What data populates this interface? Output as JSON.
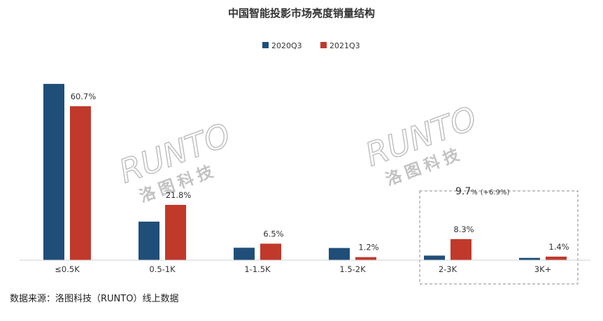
{
  "chart_data": {
    "type": "bar",
    "title": "中国智能投影市场亮度销量结构",
    "categories": [
      "≤0.5K",
      "0.5-1K",
      "1-1.5K",
      "1.5-2K",
      "2-3K",
      "3K+"
    ],
    "series": [
      {
        "name": "2020Q3",
        "color": "#1f4e79",
        "values": [
          69.5,
          15.2,
          4.9,
          4.8,
          1.8,
          0.9
        ]
      },
      {
        "name": "2021Q3",
        "color": "#c0392b",
        "values": [
          60.7,
          21.8,
          6.5,
          1.2,
          8.3,
          1.4
        ]
      }
    ],
    "data_labels": [
      "60.7%",
      "21.8%",
      "6.5%",
      "1.2%",
      "8.3%",
      "1.4%"
    ],
    "ylim": [
      0,
      75
    ],
    "grid": false,
    "legend_position": "top-center",
    "annotation": {
      "value": "9.7",
      "unit": "%",
      "change": "(+6.9%)"
    }
  },
  "watermarks": [
    {
      "brand": "RUNTO",
      "cn": "洛图科技"
    },
    {
      "brand": "RUNTO",
      "cn": "洛图科技"
    }
  ],
  "source_note": "数据来源：洛图科技（RUNTO）线上数据"
}
